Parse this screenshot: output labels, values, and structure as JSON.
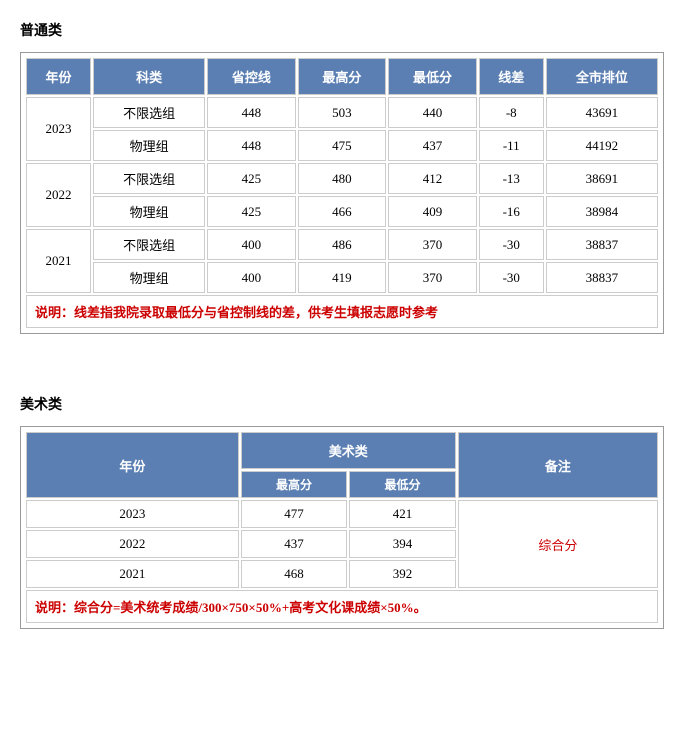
{
  "section1": {
    "title": "普通类",
    "headers": [
      "年份",
      "科类",
      "省控线",
      "最高分",
      "最低分",
      "线差",
      "全市排位"
    ],
    "header_bg": "#5b7fb3",
    "header_color": "#ffffff",
    "years": [
      {
        "year": "2023",
        "rows": [
          {
            "subject": "不限选组",
            "provincial_line": "448",
            "max": "503",
            "min": "440",
            "diff": "-8",
            "rank": "43691"
          },
          {
            "subject": "物理组",
            "provincial_line": "448",
            "max": "475",
            "min": "437",
            "diff": "-11",
            "rank": "44192"
          }
        ]
      },
      {
        "year": "2022",
        "rows": [
          {
            "subject": "不限选组",
            "provincial_line": "425",
            "max": "480",
            "min": "412",
            "diff": "-13",
            "rank": "38691"
          },
          {
            "subject": "物理组",
            "provincial_line": "425",
            "max": "466",
            "min": "409",
            "diff": "-16",
            "rank": "38984"
          }
        ]
      },
      {
        "year": "2021",
        "rows": [
          {
            "subject": "不限选组",
            "provincial_line": "400",
            "max": "486",
            "min": "370",
            "diff": "-30",
            "rank": "38837"
          },
          {
            "subject": "物理组",
            "provincial_line": "400",
            "max": "419",
            "min": "370",
            "diff": "-30",
            "rank": "38837"
          }
        ]
      }
    ],
    "note": "说明：线差指我院录取最低分与省控制线的差，供考生填报志愿时参考",
    "note_color": "#cc0000"
  },
  "section2": {
    "title": "美术类",
    "headers": {
      "year": "年份",
      "category": "美术类",
      "remark": "备注",
      "max": "最高分",
      "min": "最低分"
    },
    "rows": [
      {
        "year": "2023",
        "max": "477",
        "min": "421"
      },
      {
        "year": "2022",
        "max": "437",
        "min": "394"
      },
      {
        "year": "2021",
        "max": "468",
        "min": "392"
      }
    ],
    "remark_text": "综合分",
    "remark_color": "#cc0000",
    "note": "说明：综合分=美术统考成绩/300×750×50%+高考文化课成绩×50%。",
    "note_color": "#cc0000"
  }
}
